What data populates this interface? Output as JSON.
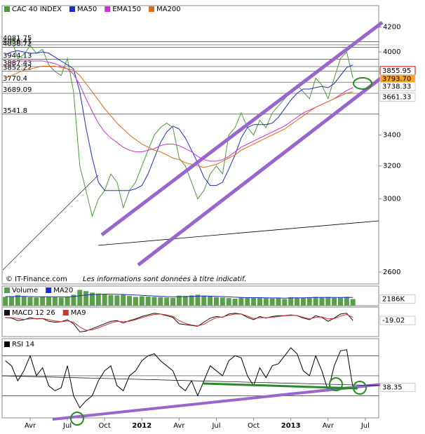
{
  "chart_data": [
    {
      "type": "line",
      "log_scale": true,
      "source": "© IT-Finance.com",
      "note": "Les informations sont données à titre indicatif.",
      "categories": [
        null,
        null,
        null,
        null,
        "Avr",
        null,
        null,
        null,
        null,
        null,
        "Jul",
        null,
        null,
        null,
        null,
        null,
        "Oct",
        null,
        null,
        null,
        null,
        null,
        "2012",
        null,
        null,
        null,
        null,
        null,
        "Avr",
        null,
        null,
        null,
        null,
        null,
        "Jul",
        null,
        null,
        null,
        null,
        null,
        "Oct",
        null,
        null,
        null,
        null,
        null,
        "2013",
        null,
        null,
        null,
        null,
        null,
        "Avr",
        null,
        null,
        null,
        null,
        null,
        "Jul",
        null
      ],
      "ylim": [
        2540,
        4380
      ],
      "yticks": [
        2600,
        3000,
        3200,
        3400,
        4000,
        4200
      ],
      "levels": [
        4081.75,
        4056.41,
        4036.72,
        3944.13,
        3887.43,
        3852.22,
        3770.4,
        3689.09,
        3541.8
      ],
      "right_labels": [
        {
          "value": 3855.95,
          "label": "3855.95",
          "color": "#1f3fbf"
        },
        {
          "value": 3793.7,
          "label": "3793.70",
          "color": "#000000"
        },
        {
          "value": 3738.33,
          "label": "3738.33",
          "color": "#cc33cc"
        },
        {
          "value": 3661.33,
          "label": "3661.33",
          "color": "#e06a10"
        }
      ],
      "series": [
        {
          "name": "CAC 40 INDEX",
          "color": "#4a9a3a",
          "values": [
            4050,
            4100,
            3950,
            3980,
            4050,
            3990,
            4020,
            3900,
            3850,
            3820,
            3950,
            3700,
            3200,
            3050,
            2900,
            3000,
            3050,
            3150,
            3100,
            2950,
            3050,
            3100,
            3200,
            3300,
            3400,
            3450,
            3480,
            3450,
            3250,
            3200,
            3100,
            3000,
            3050,
            3150,
            3200,
            3150,
            3400,
            3450,
            3550,
            3450,
            3400,
            3500,
            3450,
            3550,
            3600,
            3650,
            3700,
            3750,
            3700,
            3650,
            3800,
            3750,
            3650,
            3800,
            3950,
            4000,
            3800,
            null,
            null,
            null
          ]
        },
        {
          "name": "MA50",
          "color": "#1f2fbf",
          "values": [
            3980,
            4000,
            4010,
            4000,
            3990,
            3990,
            4000,
            3990,
            3960,
            3930,
            3900,
            3870,
            3700,
            3450,
            3250,
            3100,
            3050,
            3050,
            3050,
            3050,
            3050,
            3060,
            3080,
            3150,
            3250,
            3350,
            3420,
            3460,
            3440,
            3380,
            3300,
            3220,
            3130,
            3080,
            3080,
            3100,
            3180,
            3270,
            3380,
            3450,
            3470,
            3470,
            3470,
            3480,
            3520,
            3580,
            3640,
            3690,
            3720,
            3720,
            3730,
            3740,
            3730,
            3760,
            3820,
            3880,
            3900,
            null,
            null,
            null
          ]
        },
        {
          "name": "EMA150",
          "color": "#cc33cc",
          "values": [
            3900,
            3920,
            3930,
            3930,
            3930,
            3930,
            3930,
            3920,
            3910,
            3890,
            3870,
            3830,
            3750,
            3650,
            3560,
            3480,
            3420,
            3380,
            3350,
            3320,
            3300,
            3290,
            3290,
            3300,
            3310,
            3330,
            3340,
            3340,
            3330,
            3310,
            3290,
            3260,
            3240,
            3230,
            3230,
            3240,
            3260,
            3290,
            3320,
            3340,
            3360,
            3380,
            3400,
            3420,
            3440,
            3460,
            3490,
            3520,
            3550,
            3570,
            3590,
            3610,
            3630,
            3650,
            3680,
            3710,
            3730,
            null,
            null,
            null
          ]
        },
        {
          "name": "MA200",
          "color": "#e06a10",
          "values": [
            3800,
            3820,
            3840,
            3860,
            3870,
            3880,
            3890,
            3890,
            3890,
            3880,
            3870,
            3860,
            3820,
            3760,
            3700,
            3640,
            3580,
            3530,
            3480,
            3440,
            3400,
            3370,
            3340,
            3320,
            3300,
            3290,
            3270,
            3250,
            3240,
            3220,
            3210,
            3200,
            3190,
            3200,
            3210,
            3230,
            3250,
            3270,
            3300,
            3320,
            3340,
            3360,
            3380,
            3400,
            3420,
            3440,
            3470,
            3500,
            3530,
            3560,
            3590,
            3610,
            3630,
            3650,
            3670,
            3690,
            3700,
            null,
            null,
            null
          ]
        }
      ]
    },
    {
      "type": "bar",
      "ylim": [
        0,
        6000
      ],
      "right_labels": [
        {
          "value": 2186,
          "label": "2186K",
          "color": "#cc0000"
        }
      ],
      "series": [
        {
          "name": "Volume",
          "color": "#5aa04a",
          "values": [
            2900,
            3100,
            3500,
            3000,
            2800,
            2700,
            2900,
            3000,
            2800,
            2700,
            2900,
            3600,
            5200,
            4800,
            4300,
            4000,
            3800,
            3500,
            3400,
            3600,
            3200,
            2900,
            3100,
            3000,
            2900,
            2800,
            2700,
            2600,
            3300,
            3200,
            3400,
            3600,
            3300,
            3100,
            2800,
            2700,
            2500,
            2300,
            2800,
            2700,
            2600,
            2700,
            2500,
            2400,
            2600,
            2200,
            2800,
            2700,
            2600,
            2800,
            2900,
            2700,
            2800,
            2600,
            2700,
            2900,
            2186,
            null,
            null,
            null
          ]
        },
        {
          "name": "MA20",
          "color": "#1f2fbf",
          "values": [
            3000,
            3000,
            3050,
            3050,
            3000,
            2950,
            2950,
            2950,
            2950,
            2900,
            2900,
            3000,
            3300,
            3500,
            3650,
            3750,
            3800,
            3800,
            3750,
            3700,
            3600,
            3500,
            3400,
            3300,
            3200,
            3100,
            3000,
            2950,
            2950,
            3000,
            3050,
            3150,
            3200,
            3150,
            3100,
            3000,
            2900,
            2800,
            2700,
            2650,
            2650,
            2650,
            2600,
            2550,
            2550,
            2500,
            2550,
            2600,
            2600,
            2650,
            2700,
            2700,
            2750,
            2700,
            2700,
            2750,
            2700,
            null,
            null,
            null
          ]
        }
      ]
    },
    {
      "type": "line",
      "ylim": [
        -200,
        120
      ],
      "right_labels": [
        {
          "value": -19.02,
          "label": "-19.02",
          "color": "#000000"
        }
      ],
      "series": [
        {
          "name": "MACD 12 26",
          "color": "#111111",
          "values": [
            20,
            10,
            -20,
            -10,
            15,
            0,
            5,
            -30,
            -40,
            -35,
            -10,
            -60,
            -160,
            -150,
            -120,
            -90,
            -60,
            -30,
            -20,
            -50,
            -20,
            0,
            30,
            50,
            70,
            60,
            40,
            20,
            -60,
            -70,
            -80,
            -90,
            -40,
            10,
            30,
            20,
            60,
            70,
            60,
            20,
            -10,
            30,
            10,
            30,
            40,
            40,
            50,
            40,
            10,
            -10,
            40,
            20,
            -30,
            10,
            60,
            70,
            -19.02,
            null,
            null,
            null
          ]
        },
        {
          "name": "MA9",
          "color": "#d03030",
          "values": [
            15,
            15,
            5,
            -5,
            0,
            5,
            5,
            -10,
            -25,
            -35,
            -25,
            -40,
            -100,
            -140,
            -135,
            -110,
            -80,
            -50,
            -30,
            -35,
            -30,
            -10,
            15,
            35,
            55,
            60,
            50,
            30,
            -20,
            -55,
            -75,
            -85,
            -65,
            -20,
            15,
            25,
            45,
            60,
            60,
            35,
            5,
            15,
            15,
            20,
            30,
            38,
            45,
            42,
            20,
            0,
            20,
            25,
            0,
            5,
            35,
            55,
            20,
            null,
            null,
            null
          ]
        }
      ]
    },
    {
      "type": "line",
      "ylim": [
        10,
        85
      ],
      "levels": [
        30,
        50,
        70
      ],
      "right_labels": [
        {
          "value": 38.35,
          "label": "38.35",
          "color": "#000000"
        }
      ],
      "series": [
        {
          "name": "RSI 14",
          "color": "#000000",
          "values": [
            65,
            60,
            45,
            55,
            70,
            50,
            58,
            40,
            35,
            38,
            60,
            30,
            18,
            25,
            30,
            45,
            55,
            60,
            40,
            35,
            50,
            55,
            65,
            70,
            72,
            65,
            60,
            55,
            40,
            35,
            45,
            30,
            45,
            60,
            55,
            50,
            65,
            70,
            68,
            50,
            40,
            58,
            48,
            60,
            62,
            70,
            78,
            72,
            55,
            50,
            70,
            55,
            35,
            60,
            75,
            76,
            38.35,
            null,
            null,
            null
          ]
        }
      ]
    }
  ]
}
